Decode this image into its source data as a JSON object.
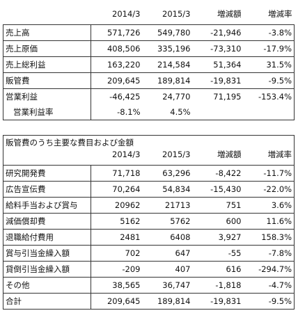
{
  "table1": {
    "headers": [
      "",
      "2014/3",
      "2015/3",
      "増減額",
      "増減率"
    ],
    "rows": [
      [
        "売上高",
        "571,726",
        "549,780",
        "-21,946",
        "-3.8%"
      ],
      [
        "売上原価",
        "408,506",
        "335,196",
        "-73,310",
        "-17.9%"
      ],
      [
        "売上総利益",
        "163,220",
        "214,584",
        "51,364",
        "31.5%"
      ],
      [
        "販管費",
        "209,645",
        "189,814",
        "-19,831",
        "-9.5%"
      ],
      [
        "営業利益",
        "-46,425",
        "24,770",
        "71,195",
        "-153.4%"
      ],
      [
        "営業利益率",
        "-8.1%",
        "4.5%",
        "",
        ""
      ]
    ]
  },
  "table2": {
    "title": "販管費のうち主要な費目および金額",
    "headers": [
      "",
      "2014/3",
      "2015/3",
      "増減額",
      "増減率"
    ],
    "rows": [
      [
        "研究開発費",
        "71,718",
        "63,296",
        "-8,422",
        "-11.7%"
      ],
      [
        "広告宣伝費",
        "70,264",
        "54,834",
        "-15,430",
        "-22.0%"
      ],
      [
        "給料手当および賞与",
        "20962",
        "21713",
        "751",
        "3.6%"
      ],
      [
        "減価償却費",
        "5162",
        "5762",
        "600",
        "11.6%"
      ],
      [
        "退職給付費用",
        "2481",
        "6408",
        "3,927",
        "158.3%"
      ],
      [
        "賞与引当金繰入額",
        "702",
        "647",
        "-55",
        "-7.8%"
      ],
      [
        "貸倒引当金繰入額",
        "-209",
        "407",
        "616",
        "-294.7%"
      ],
      [
        "その他",
        "38,565",
        "36,747",
        "-1,818",
        "-4.7%"
      ],
      [
        "合計",
        "209,645",
        "189,814",
        "-19,831",
        "-9.5%"
      ]
    ]
  }
}
